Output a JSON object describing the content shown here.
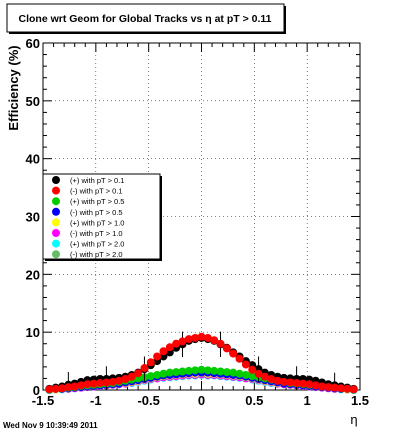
{
  "title": "Clone wrt Geom for Global Tracks vs    η at pT > 0.11",
  "timestamp": "Wed Nov  9 10:39:49 2011",
  "chart_data": {
    "type": "scatter",
    "xlabel": "η",
    "ylabel": "Efficiency (%)",
    "xlim": [
      -1.5,
      1.5
    ],
    "ylim": [
      0,
      60
    ],
    "x_ticks": [
      -1.5,
      -1,
      -0.5,
      0,
      0.5,
      1,
      1.5
    ],
    "x_tick_labels": [
      "-1.5",
      "-1",
      "-0.5",
      "0",
      "0.5",
      "1",
      "1.5"
    ],
    "y_ticks": [
      0,
      10,
      20,
      30,
      40,
      50,
      60
    ],
    "y_tick_labels": [
      "0",
      "10",
      "20",
      "30",
      "40",
      "50",
      "60"
    ],
    "grid": true,
    "legend_position": "left-middle",
    "x": [
      -1.44,
      -1.38,
      -1.32,
      -1.26,
      -1.2,
      -1.14,
      -1.08,
      -1.02,
      -0.96,
      -0.9,
      -0.84,
      -0.78,
      -0.72,
      -0.66,
      -0.6,
      -0.54,
      -0.48,
      -0.42,
      -0.36,
      -0.3,
      -0.24,
      -0.18,
      -0.12,
      -0.06,
      0,
      0.06,
      0.12,
      0.18,
      0.24,
      0.3,
      0.36,
      0.42,
      0.48,
      0.54,
      0.6,
      0.66,
      0.72,
      0.78,
      0.84,
      0.9,
      0.96,
      1.02,
      1.08,
      1.14,
      1.2,
      1.26,
      1.32,
      1.38,
      1.44
    ],
    "series": [
      {
        "name": "(+) with pT > 0.1",
        "color": "#000000",
        "values": [
          0.2,
          0.4,
          0.6,
          0.9,
          1.1,
          1.4,
          1.7,
          1.8,
          1.9,
          1.9,
          2.0,
          2.1,
          2.3,
          2.6,
          3.0,
          3.6,
          4.3,
          5.0,
          5.8,
          6.5,
          7.3,
          7.9,
          8.5,
          8.8,
          9.0,
          8.8,
          8.5,
          7.9,
          7.3,
          6.5,
          5.8,
          5.0,
          4.3,
          3.6,
          3.0,
          2.6,
          2.3,
          2.1,
          2.0,
          1.9,
          1.9,
          1.8,
          1.6,
          1.3,
          1.0,
          0.8,
          0.6,
          0.4,
          0.2
        ]
      },
      {
        "name": "(-) with pT > 0.1",
        "color": "#ff0000",
        "values": [
          0.1,
          0.2,
          0.3,
          0.5,
          0.6,
          0.8,
          1.0,
          1.1,
          1.2,
          1.3,
          1.4,
          1.6,
          1.9,
          2.3,
          2.9,
          3.8,
          4.8,
          5.8,
          6.7,
          7.4,
          8.0,
          8.4,
          8.8,
          9.0,
          9.2,
          9.0,
          8.6,
          8.0,
          7.2,
          6.3,
          5.4,
          4.4,
          3.5,
          2.8,
          2.3,
          1.9,
          1.6,
          1.4,
          1.3,
          1.2,
          1.1,
          1.0,
          0.8,
          0.6,
          0.5,
          0.4,
          0.3,
          0.2,
          0.1
        ]
      },
      {
        "name": "(+) with pT > 0.5",
        "color": "#00cc00",
        "values": [
          0.1,
          0.2,
          0.3,
          0.4,
          0.5,
          0.7,
          0.8,
          0.9,
          1.0,
          1.1,
          1.2,
          1.4,
          1.6,
          1.8,
          2.0,
          2.2,
          2.4,
          2.6,
          2.8,
          3.0,
          3.1,
          3.2,
          3.3,
          3.4,
          3.5,
          3.4,
          3.3,
          3.2,
          3.1,
          3.0,
          2.8,
          2.6,
          2.4,
          2.2,
          2.0,
          1.8,
          1.6,
          1.4,
          1.2,
          1.1,
          1.0,
          0.9,
          0.8,
          0.7,
          0.5,
          0.4,
          0.3,
          0.2,
          0.1
        ]
      },
      {
        "name": "(-) with pT > 0.5",
        "color": "#0000ff",
        "values": [
          0.1,
          0.2,
          0.2,
          0.3,
          0.4,
          0.5,
          0.6,
          0.7,
          0.8,
          0.9,
          1.0,
          1.1,
          1.3,
          1.5,
          1.7,
          1.9,
          2.1,
          2.3,
          2.5,
          2.6,
          2.7,
          2.8,
          2.9,
          3.0,
          3.0,
          3.0,
          2.9,
          2.8,
          2.7,
          2.6,
          2.5,
          2.3,
          2.1,
          1.9,
          1.7,
          1.5,
          1.3,
          1.1,
          1.0,
          0.9,
          0.8,
          0.7,
          0.6,
          0.5,
          0.4,
          0.3,
          0.2,
          0.2,
          0.1
        ]
      },
      {
        "name": "(+) with pT > 1.0",
        "color": "#ffff00",
        "values": [
          0.1,
          0.1,
          0.2,
          0.3,
          0.4,
          0.5,
          0.6,
          0.7,
          0.8,
          0.9,
          1.0,
          1.1,
          1.2,
          1.4,
          1.6,
          1.8,
          2.0,
          2.2,
          2.4,
          2.5,
          2.6,
          2.7,
          2.8,
          2.8,
          2.9,
          2.8,
          2.8,
          2.7,
          2.6,
          2.5,
          2.4,
          2.2,
          2.0,
          1.8,
          1.6,
          1.4,
          1.2,
          1.1,
          1.0,
          0.9,
          0.8,
          0.7,
          0.6,
          0.5,
          0.4,
          0.3,
          0.2,
          0.1,
          0.1
        ]
      },
      {
        "name": "(-) with pT > 1.0",
        "color": "#ff00ff",
        "values": [
          0.1,
          0.1,
          0.2,
          0.2,
          0.3,
          0.4,
          0.5,
          0.6,
          0.7,
          0.8,
          0.9,
          1.0,
          1.1,
          1.3,
          1.5,
          1.7,
          1.9,
          2.0,
          2.2,
          2.3,
          2.4,
          2.5,
          2.6,
          2.6,
          2.7,
          2.6,
          2.6,
          2.5,
          2.4,
          2.3,
          2.2,
          2.0,
          1.9,
          1.7,
          1.5,
          1.3,
          1.1,
          1.0,
          0.9,
          0.8,
          0.7,
          0.6,
          0.5,
          0.4,
          0.3,
          0.2,
          0.2,
          0.1,
          0.1
        ]
      },
      {
        "name": "(+) with pT > 2.0",
        "color": "#00ffff",
        "values": [
          0.0,
          0.1,
          0.1,
          0.2,
          0.3,
          0.4,
          0.5,
          0.6,
          0.7,
          0.8,
          0.9,
          1.0,
          1.1,
          1.2,
          1.4,
          1.6,
          1.8,
          2.0,
          2.1,
          2.2,
          2.3,
          2.4,
          2.5,
          2.5,
          2.6,
          2.5,
          2.5,
          2.4,
          2.3,
          2.2,
          2.1,
          2.0,
          1.8,
          1.6,
          1.4,
          1.2,
          1.1,
          1.0,
          0.9,
          0.8,
          0.7,
          0.6,
          0.5,
          0.4,
          0.3,
          0.2,
          0.1,
          0.1,
          0.0
        ]
      },
      {
        "name": "(-) with pT > 2.0",
        "color": "#66bb66",
        "values": [
          0.0,
          0.1,
          0.2,
          0.3,
          0.4,
          0.5,
          0.6,
          0.8,
          0.9,
          1.0,
          1.2,
          1.3,
          1.5,
          1.7,
          1.9,
          2.1,
          2.3,
          2.5,
          2.7,
          2.8,
          2.9,
          3.0,
          3.1,
          3.1,
          3.2,
          3.1,
          3.1,
          3.0,
          2.9,
          2.8,
          2.7,
          2.5,
          2.3,
          2.1,
          1.9,
          1.7,
          1.5,
          1.3,
          1.2,
          1.0,
          0.9,
          0.8,
          0.6,
          0.5,
          0.4,
          0.3,
          0.2,
          0.1,
          0.0
        ]
      }
    ]
  }
}
